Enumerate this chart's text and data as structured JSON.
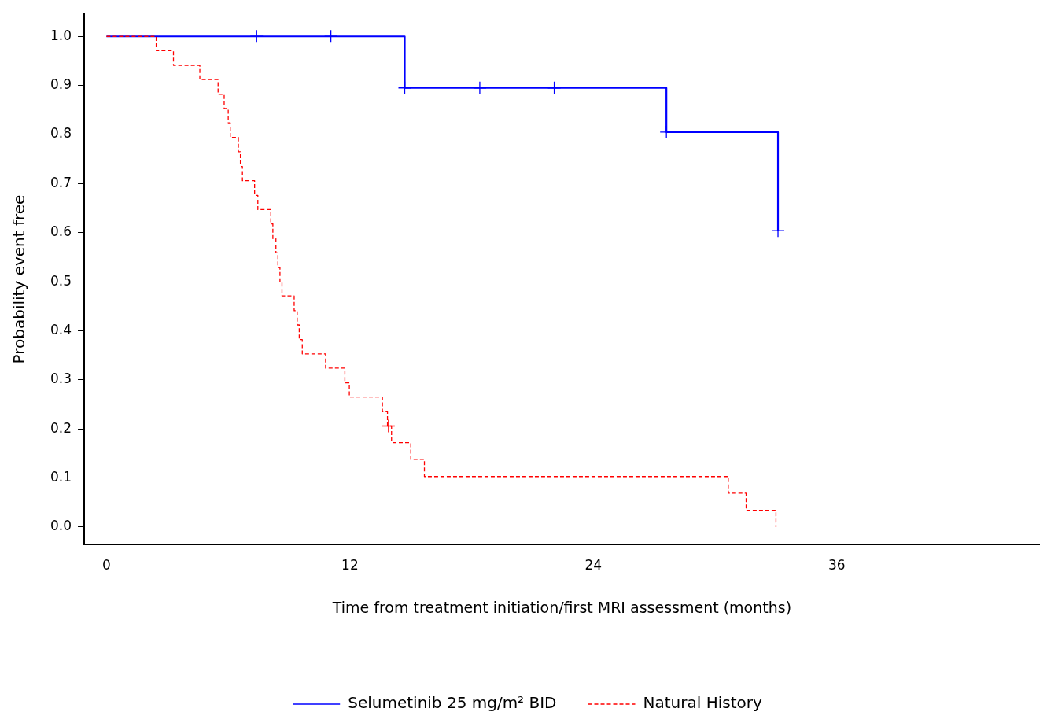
{
  "chart_data": {
    "type": "step",
    "xlabel": "Time from treatment initiation/first MRI assessment (months)",
    "ylabel": "Probability event free",
    "xlim": [
      -1.1,
      46
    ],
    "xticks": [
      0,
      12,
      24,
      36
    ],
    "ylim": [
      -0.035,
      1.045
    ],
    "yticks": [
      {
        "value": 0,
        "label": "0.0"
      },
      0.1,
      0.2,
      0.3,
      0.4,
      0.5,
      0.6,
      0.7,
      0.8,
      0.9,
      {
        "value": 1,
        "label": "1.0"
      }
    ],
    "legend": "bottom",
    "grid": false,
    "series": [
      {
        "name": "Selumetinib 25 mg/m² BID",
        "color": "#0000ff",
        "line_style": "solid",
        "x": [
          0,
          14.7,
          27.6,
          33.1
        ],
        "values": [
          1,
          0.895,
          0.805,
          0.604
        ]
      },
      {
        "name": "Natural History",
        "color": "#ff0000",
        "line_style": "dashed",
        "x": [
          0,
          2.45,
          3.3,
          4.6,
          5.5,
          5.8,
          6.0,
          6.1,
          6.5,
          6.6,
          6.7,
          7.3,
          7.46,
          8.1,
          8.2,
          8.35,
          8.45,
          8.55,
          8.65,
          9.25,
          9.4,
          9.5,
          9.65,
          10.8,
          11.75,
          11.97,
          13.6,
          13.85,
          14.05,
          15.0,
          15.67,
          30.65,
          31.53,
          33.0
        ],
        "values": [
          1,
          0.971,
          0.941,
          0.912,
          0.882,
          0.853,
          0.824,
          0.794,
          0.765,
          0.735,
          0.706,
          0.676,
          0.647,
          0.618,
          0.588,
          0.559,
          0.529,
          0.5,
          0.471,
          0.441,
          0.412,
          0.382,
          0.353,
          0.324,
          0.294,
          0.265,
          0.235,
          0.206,
          0.172,
          0.138,
          0.103,
          0.069,
          0.034,
          0
        ]
      },
      {
        "type": "scatter",
        "marker": "cross",
        "color": "#0000ff",
        "x": [
          7.4,
          11.06,
          14.7,
          18.4,
          22.07,
          27.6,
          33.1
        ],
        "values": [
          1,
          1,
          0.895,
          0.895,
          0.895,
          0.805,
          0.604
        ]
      },
      {
        "type": "scatter",
        "marker": "cross",
        "color": "#ff0000",
        "x": [
          13.9
        ],
        "values": [
          0.206
        ]
      }
    ]
  }
}
